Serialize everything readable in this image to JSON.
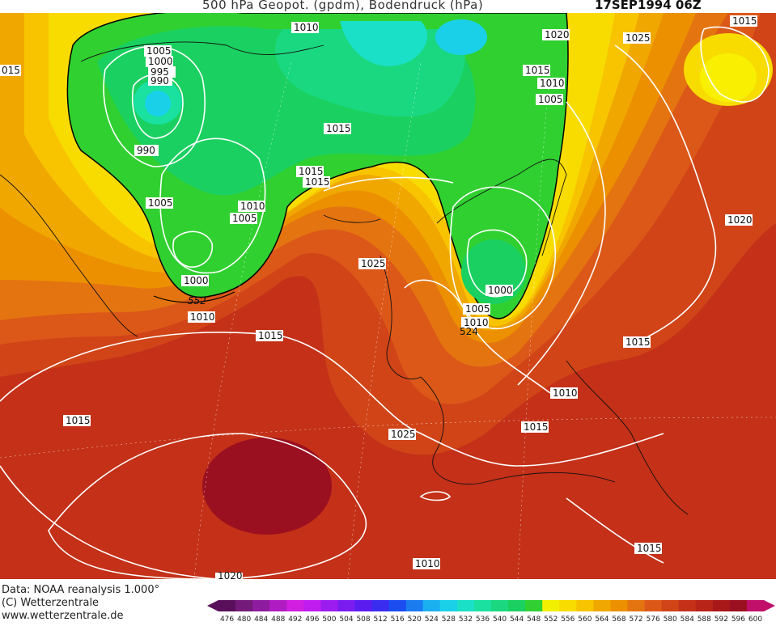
{
  "header": {
    "title": "500 hPa Geopot. (gpdm), Bodendruck (hPa)",
    "date": "17SEP1994 06Z"
  },
  "footer": {
    "data_source": "Data: NOAA reanalysis 1.000°",
    "copyright": "(C) Wetterzentrale",
    "website": "www.wetterzentrale.de"
  },
  "legend": {
    "values": [
      "476",
      "480",
      "484",
      "488",
      "492",
      "496",
      "500",
      "504",
      "508",
      "512",
      "516",
      "520",
      "524",
      "528",
      "532",
      "536",
      "540",
      "544",
      "548",
      "552",
      "556",
      "560",
      "564",
      "568",
      "572",
      "576",
      "580",
      "584",
      "588",
      "592",
      "596",
      "600"
    ],
    "colors": [
      "#5a0f5a",
      "#741a7a",
      "#8e1c9e",
      "#b01cc2",
      "#d11ee0",
      "#c01cf0",
      "#9c1cf0",
      "#7a1cf0",
      "#5a1cf0",
      "#3a2cf0",
      "#1a4cf0",
      "#1a7cf0",
      "#1ab0f0",
      "#1ad0e8",
      "#1ae0c8",
      "#1ae0a0",
      "#1ad880",
      "#1ad060",
      "#30d030",
      "#f0f000",
      "#f8dc00",
      "#f8c400",
      "#f0a800",
      "#ec9000",
      "#e47410",
      "#dc5818",
      "#d04418",
      "#c43018",
      "#b82418",
      "#a81818",
      "#9a1020",
      "#c0106a"
    ]
  },
  "isobar_labels": [
    "1010",
    "1005",
    "1000",
    "995",
    "990",
    "1010",
    "1015",
    "1020",
    "1015",
    "1010",
    "1005",
    "1025",
    "1015",
    "1015",
    "1015",
    "1005",
    "1010",
    "1005",
    "1000",
    "552",
    "1010",
    "1025",
    "1015",
    "1000",
    "1005",
    "1010",
    "524",
    "1020",
    "1015",
    "1010",
    "1015",
    "1025",
    "1015",
    "1010",
    "1020",
    "015"
  ],
  "contour_labels_552": "552"
}
